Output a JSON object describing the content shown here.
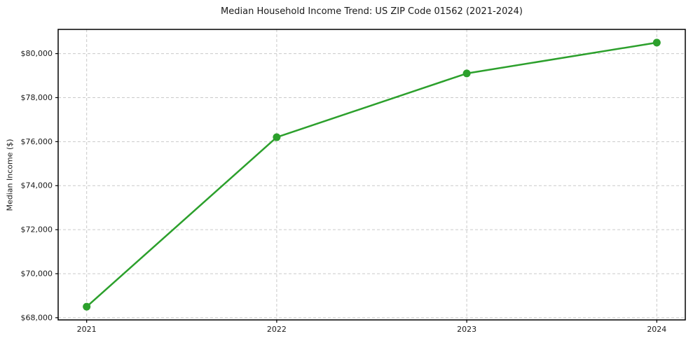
{
  "chart_data": {
    "type": "line",
    "title": "Median Household Income Trend: US ZIP Code 01562 (2021-2024)",
    "xlabel": "",
    "ylabel": "Median Income ($)",
    "x": [
      2021,
      2022,
      2023,
      2024
    ],
    "x_tick_labels": [
      "2021",
      "2022",
      "2023",
      "2024"
    ],
    "series": [
      {
        "name": "Median household income",
        "values": [
          68500,
          76200,
          79100,
          80500
        ]
      }
    ],
    "y_ticks": [
      68000,
      70000,
      72000,
      74000,
      76000,
      78000,
      80000
    ],
    "y_tick_labels": [
      "$68,000",
      "$70,000",
      "$72,000",
      "$74,000",
      "$76,000",
      "$78,000",
      "$80,000"
    ],
    "xlim": [
      2020.85,
      2024.15
    ],
    "ylim": [
      67900,
      81100
    ],
    "grid": true,
    "grid_style": "dashed",
    "legend": "none",
    "line_color": "#2ca02c",
    "marker": "circle"
  }
}
